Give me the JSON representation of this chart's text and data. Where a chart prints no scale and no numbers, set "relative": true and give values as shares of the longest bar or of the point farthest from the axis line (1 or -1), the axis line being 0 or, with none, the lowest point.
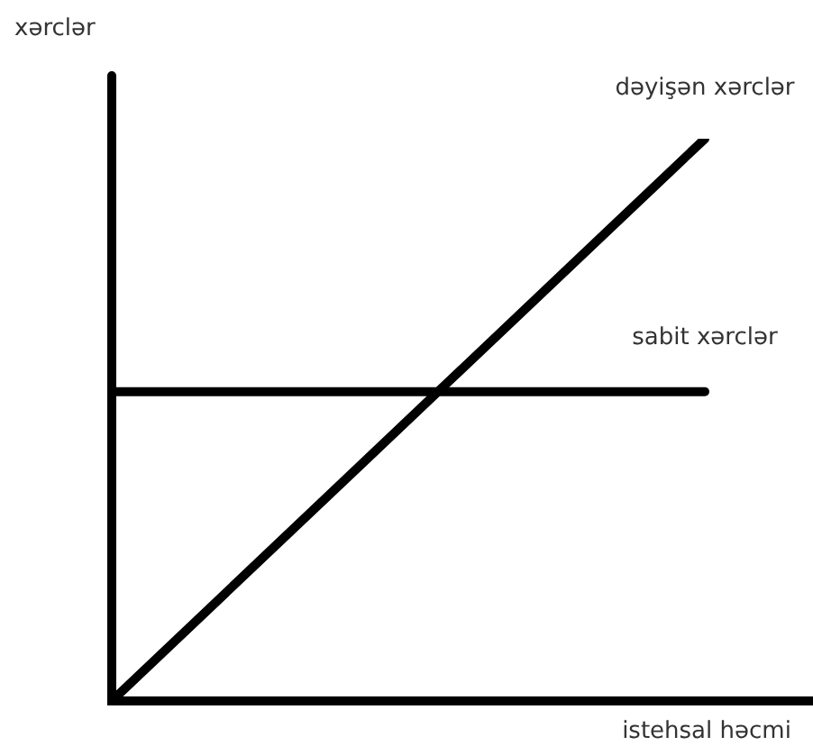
{
  "chart_data": {
    "type": "line",
    "relative": true,
    "xlabel": "istehsal həcmi",
    "ylabel": "xərclər",
    "categories": [
      null,
      null
    ],
    "legend": false,
    "marker": "none",
    "series": [
      {
        "name": "dəyişən xərclər",
        "color": "#000000",
        "values": [
          0,
          1
        ]
      },
      {
        "name": "sabit xərclər",
        "color": "#000000",
        "values": [
          0.55,
          0.55
        ]
      }
    ]
  }
}
